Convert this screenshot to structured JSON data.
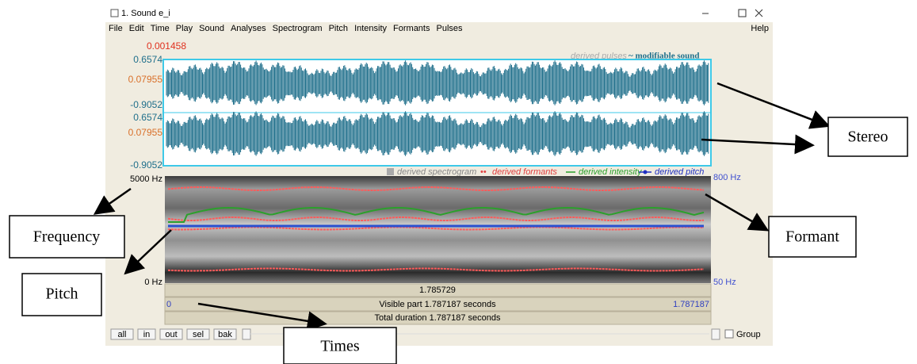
{
  "window": {
    "title": "1. Sound e_i",
    "menu": [
      "File",
      "Edit",
      "Time",
      "Play",
      "Sound",
      "Analyses",
      "Spectrogram",
      "Pitch",
      "Intensity",
      "Formants",
      "Pulses"
    ],
    "help": "Help"
  },
  "sound": {
    "cursor_value": "0.001458",
    "channels": [
      {
        "max": "0.6574",
        "mid": "0.07955",
        "min": "-0.9052"
      },
      {
        "max": "0.6574",
        "mid": "0.07955",
        "min": "-0.9052"
      }
    ],
    "legend": [
      "derived pulses",
      "~ modifiable sound"
    ]
  },
  "spectrogram": {
    "top_left": "5000 Hz",
    "bottom_left": "0 Hz",
    "top_right": "800 Hz",
    "bottom_right": "50 Hz",
    "legend": [
      "derived spectrogram",
      "derived formants",
      "derived intensity",
      "derived pitch"
    ]
  },
  "time_bars": {
    "cursor": "1.785729",
    "start": "0",
    "visible": "Visible part 1.787187 seconds",
    "end": "1.787187",
    "total": "Total duration 1.787187 seconds"
  },
  "buttons": [
    "all",
    "in",
    "out",
    "sel",
    "bak"
  ],
  "group": "Group",
  "annotations": {
    "stereo": "Stereo",
    "frequency": "Frequency",
    "formant": "Formant",
    "pitch": "Pitch",
    "times": "Times"
  }
}
